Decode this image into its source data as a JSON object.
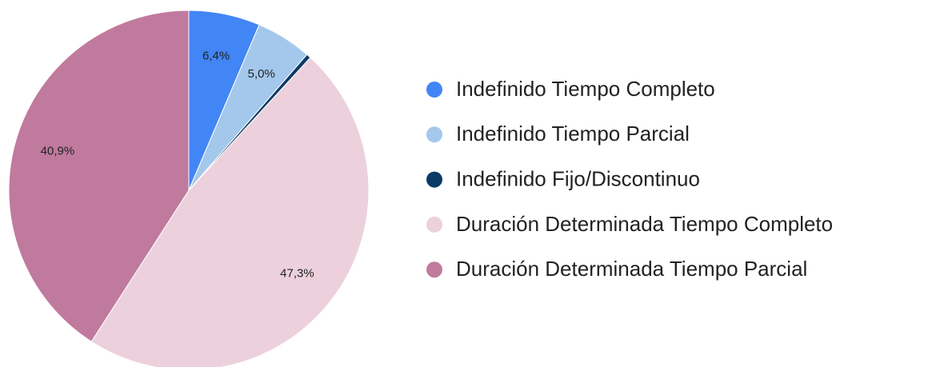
{
  "chart_data": {
    "type": "pie",
    "categories": [
      "Indefinido Tiempo Completo",
      "Indefinido Tiempo Parcial",
      "Indefinido Fijo/Discontinuo",
      "Duración Determinada Tiempo Completo",
      "Duración Determinada Tiempo Parcial"
    ],
    "values": [
      6.4,
      5.0,
      0.4,
      47.3,
      40.9
    ],
    "value_labels": [
      "6,4%",
      "5,0%",
      null,
      "47,3%",
      "40,9%"
    ],
    "colors": [
      "#4285f4",
      "#a4c8ec",
      "#0b3a66",
      "#ecd1dc",
      "#c07a9e"
    ],
    "legend": "right"
  }
}
